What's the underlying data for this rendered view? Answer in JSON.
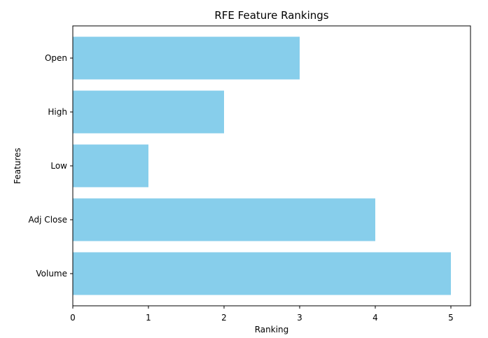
{
  "chart_data": {
    "type": "bar",
    "orientation": "horizontal",
    "title": "RFE Feature Rankings",
    "xlabel": "Ranking",
    "ylabel": "Features",
    "categories": [
      "Open",
      "High",
      "Low",
      "Adj Close",
      "Volume"
    ],
    "values": [
      3,
      2,
      1,
      4,
      5
    ],
    "xlim": [
      0,
      5.25
    ],
    "xticks": [
      "0",
      "1",
      "2",
      "3",
      "4",
      "5"
    ],
    "grid": false,
    "bar_color": "#87ceeb"
  }
}
